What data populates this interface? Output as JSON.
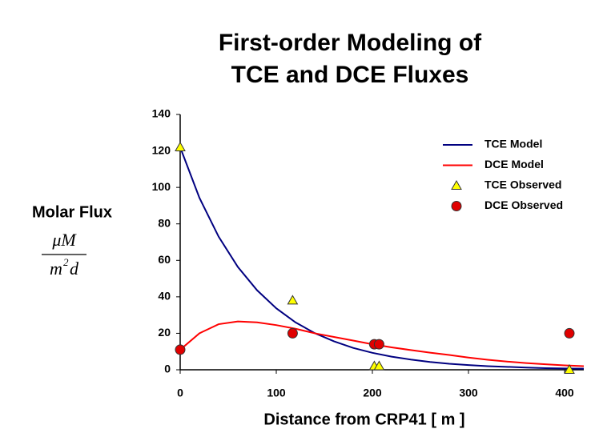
{
  "chart_data": {
    "type": "line",
    "title": [
      "First-order Modeling of",
      "TCE and DCE Fluxes"
    ],
    "y_label": "Molar Flux",
    "y_unit": {
      "numerator": "μM",
      "denominator_base": "m",
      "denominator_exponent": "2",
      "denominator_tail": "d"
    },
    "x_label": "Distance from CRP41  [ m ]",
    "xlim": [
      0,
      420
    ],
    "xticks": [
      0,
      100,
      200,
      300,
      400
    ],
    "ylim": [
      0,
      140
    ],
    "yticks": [
      0,
      20,
      40,
      60,
      80,
      100,
      120,
      140
    ],
    "legend": "top-right",
    "series": [
      {
        "name": "TCE Model",
        "style": "line",
        "color": "#000080",
        "x": [
          0,
          20,
          40,
          60,
          80,
          100,
          120,
          140,
          160,
          180,
          200,
          220,
          240,
          260,
          280,
          300,
          320,
          340,
          360,
          380,
          400,
          420
        ],
        "values": [
          122,
          94.3,
          73,
          56.4,
          43.6,
          33.7,
          26,
          20.1,
          15.6,
          12,
          9.3,
          7.2,
          5.6,
          4.3,
          3.3,
          2.6,
          2,
          1.6,
          1.2,
          0.9,
          0.7,
          0.6
        ]
      },
      {
        "name": "DCE Model",
        "style": "line",
        "color": "#ff0000",
        "x": [
          0,
          20,
          40,
          60,
          80,
          100,
          120,
          140,
          160,
          180,
          200,
          220,
          240,
          260,
          280,
          300,
          320,
          340,
          360,
          380,
          400,
          420
        ],
        "values": [
          11,
          20,
          25,
          26.5,
          26,
          24.5,
          22.5,
          20,
          18,
          16,
          14,
          12.3,
          10.8,
          9.4,
          8.1,
          6.7,
          5.5,
          4.5,
          3.7,
          3,
          2.4,
          2
        ]
      },
      {
        "name": "TCE Observed",
        "style": "triangle",
        "color": "#ffff00",
        "x": [
          0,
          117,
          202,
          207,
          405
        ],
        "values": [
          122,
          38,
          2,
          2,
          0
        ]
      },
      {
        "name": "DCE Observed",
        "style": "circle",
        "color": "#e00000",
        "x": [
          0,
          117,
          202,
          207,
          405
        ],
        "values": [
          11,
          20,
          14,
          14,
          20
        ]
      }
    ]
  }
}
